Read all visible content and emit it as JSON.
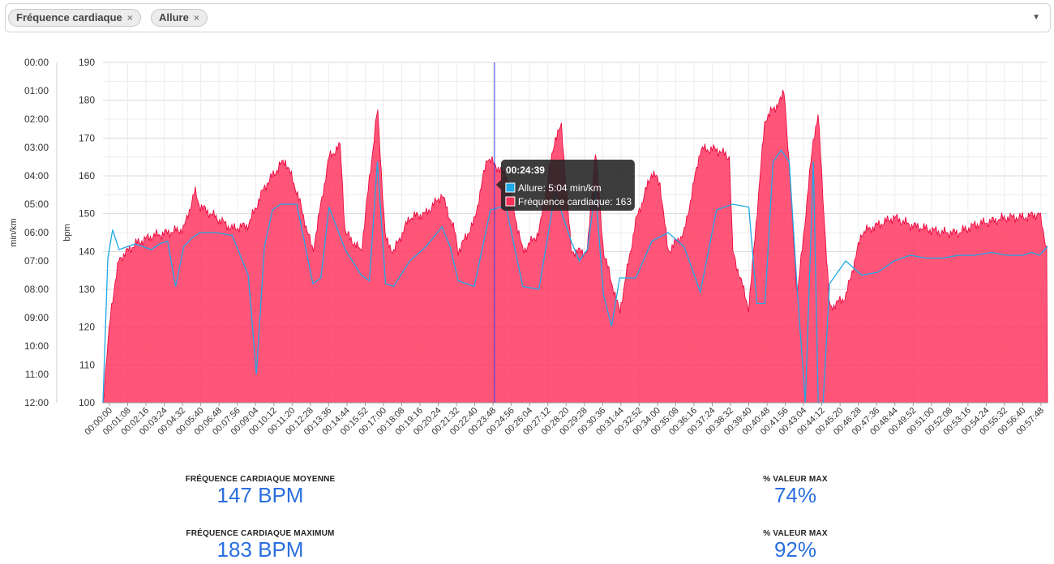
{
  "filters": {
    "tags": [
      {
        "label": "Fréquence cardiaque",
        "remove": "×"
      },
      {
        "label": "Allure",
        "remove": "×"
      }
    ],
    "dropdown_icon": "caret-down-icon"
  },
  "chart_data": {
    "type": "area",
    "x_ticks": [
      "00:00:00",
      "00:01:08",
      "00:02:16",
      "00:03:24",
      "00:04:32",
      "00:05:40",
      "00:06:48",
      "00:07:56",
      "00:09:04",
      "00:10:12",
      "00:11:20",
      "00:12:28",
      "00:13:36",
      "00:14:44",
      "00:15:52",
      "00:17:00",
      "00:18:08",
      "00:19:16",
      "00:20:24",
      "00:21:32",
      "00:22:40",
      "00:23:48",
      "00:24:56",
      "00:26:04",
      "00:27:12",
      "00:28:20",
      "00:29:28",
      "00:30:36",
      "00:31:44",
      "00:32:52",
      "00:34:00",
      "00:35:08",
      "00:36:16",
      "00:37:24",
      "00:38:32",
      "00:39:40",
      "00:40:48",
      "00:41:56",
      "00:43:04",
      "00:44:12",
      "00:45:20",
      "00:46:28",
      "00:47:36",
      "00:48:44",
      "00:49:52",
      "00:51:00",
      "00:52:08",
      "00:53:16",
      "00:54:24",
      "00:55:32",
      "00:56:40",
      "00:57:48"
    ],
    "y_left": {
      "label": "min/km",
      "ticks": [
        "00:00",
        "01:00",
        "02:00",
        "03:00",
        "04:00",
        "05:00",
        "06:00",
        "07:00",
        "08:00",
        "09:00",
        "10:00",
        "11:00",
        "12:00"
      ],
      "range": [
        0,
        12
      ]
    },
    "y_right": {
      "label": "bpm",
      "ticks": [
        "190",
        "180",
        "170",
        "160",
        "150",
        "140",
        "130",
        "120",
        "110",
        "100"
      ],
      "range": [
        100,
        190
      ]
    },
    "series": [
      {
        "name": "Fréquence cardiaque",
        "color": "#ff2f5a",
        "x_minutes": [
          0,
          0.5,
          1,
          2,
          3,
          4,
          5,
          5.7,
          6,
          7,
          8,
          9,
          10,
          11,
          11.3,
          12,
          13,
          14,
          14.7,
          15,
          16,
          17,
          17.5,
          18,
          19,
          20,
          21,
          21.8,
          22,
          23,
          23.8,
          24,
          25,
          26,
          27,
          28,
          28.4,
          29,
          30,
          30.5,
          31,
          32,
          33,
          34,
          34.5,
          35,
          36,
          37,
          38,
          38.8,
          39,
          40,
          41,
          42,
          42.2,
          43,
          44,
          44.3,
          45,
          46,
          47,
          48,
          49,
          50,
          51,
          52,
          53,
          54,
          55,
          56,
          57,
          58,
          58.5
        ],
        "values": [
          100,
          125,
          138,
          142,
          144,
          145,
          146,
          156,
          152,
          149,
          146,
          147,
          157,
          163,
          164,
          156,
          140,
          165,
          168,
          145,
          140,
          178,
          143,
          140,
          149,
          150,
          155,
          145,
          140,
          148,
          165,
          164,
          160,
          140,
          145,
          170,
          173,
          140,
          140,
          167,
          140,
          124,
          148,
          161,
          158,
          140,
          145,
          167,
          167,
          165,
          140,
          125,
          175,
          180,
          183,
          128,
          170,
          176,
          125,
          128,
          145,
          147,
          149,
          147,
          146,
          145,
          145,
          147,
          148,
          149,
          149,
          150,
          140
        ]
      },
      {
        "name": "Allure",
        "color": "#1fa8e6",
        "unit": "min/km",
        "x_minutes": [
          0,
          0.3,
          0.6,
          1,
          2,
          3,
          3.5,
          4,
          4.5,
          5,
          5.5,
          6,
          7,
          8,
          9,
          9.5,
          10,
          10.5,
          11,
          11.3,
          12,
          13,
          13.5,
          14,
          15,
          16,
          16.5,
          17,
          17.5,
          18,
          19,
          20,
          21,
          21.5,
          22,
          23,
          24,
          24.7,
          25,
          26,
          27,
          28,
          29,
          29.5,
          30,
          30.5,
          31,
          31.5,
          32,
          33,
          34,
          35,
          36,
          37,
          38,
          39,
          40,
          40.5,
          41,
          41.5,
          42,
          42.5,
          43,
          43.5,
          44,
          44.3,
          44.6,
          45,
          46,
          47,
          48,
          49,
          50,
          51,
          52,
          53,
          54,
          55,
          56,
          57,
          57.5,
          58,
          58.5
        ],
        "values": [
          12,
          6.9,
          5.9,
          6.6,
          6.4,
          6.6,
          6.4,
          6.3,
          7.9,
          6.5,
          6.2,
          6.0,
          6.0,
          6.1,
          7.5,
          11.0,
          6.5,
          5.2,
          5.0,
          5.0,
          5.0,
          7.8,
          7.6,
          5.1,
          6.6,
          7.5,
          7.7,
          3.5,
          7.8,
          7.9,
          7.0,
          6.5,
          5.8,
          6.5,
          7.7,
          7.9,
          5.2,
          5.1,
          5.2,
          7.9,
          8.0,
          4.6,
          6.3,
          7.0,
          6.6,
          4.5,
          8.2,
          9.3,
          7.6,
          7.6,
          6.3,
          6.0,
          6.5,
          8.1,
          5.2,
          5.0,
          5.1,
          8.5,
          8.5,
          3.5,
          3.1,
          3.5,
          8.0,
          12.0,
          3.5,
          12.0,
          12.0,
          7.8,
          7.0,
          7.5,
          7.4,
          7.0,
          6.8,
          6.9,
          6.9,
          6.8,
          6.8,
          6.7,
          6.8,
          6.8,
          6.7,
          6.8,
          6.5
        ]
      }
    ],
    "tooltip": {
      "time": "00:24:39",
      "x_minutes": 24.65,
      "rows": [
        {
          "color": "#1fa8e6",
          "text": "Allure: 5:04 min/km"
        },
        {
          "color": "#ff2f5a",
          "text": "Fréquence cardiaque: 163"
        }
      ]
    },
    "cursor_color": "#3344dd",
    "grid": true
  },
  "stats": [
    {
      "label": "FRÉQUENCE CARDIAQUE MOYENNE",
      "value": "147 BPM"
    },
    {
      "label": "% VALEUR MAX",
      "value": "74%"
    },
    {
      "label": "FRÉQUENCE CARDIAQUE MAXIMUM",
      "value": "183 BPM"
    },
    {
      "label": "% VALEUR MAX",
      "value": "92%"
    }
  ]
}
